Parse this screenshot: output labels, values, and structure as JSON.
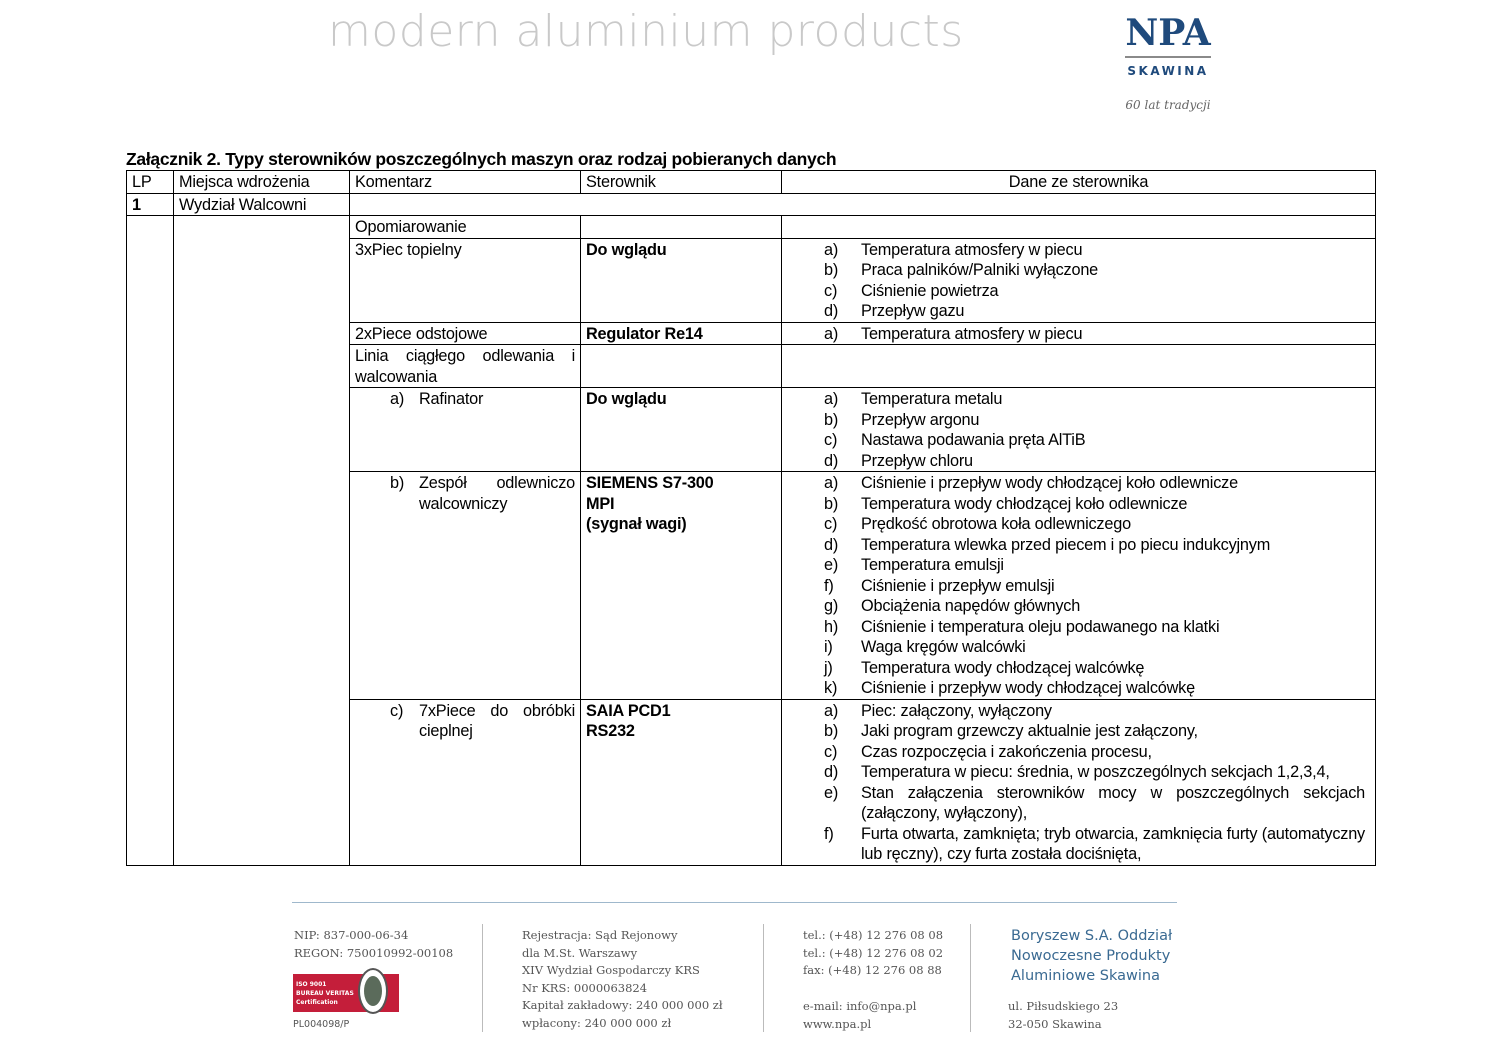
{
  "header": {
    "tagline": "modern aluminium products",
    "logo_main": "NPA",
    "logo_sub": "SKAWINA",
    "logo_tagline": "60 lat tradycji",
    "brand_color": "#1f4a7c"
  },
  "title": "Załącznik 2. Typy sterowników poszczególnych maszyn oraz rodzaj pobieranych danych",
  "table": {
    "headers": [
      "LP",
      "Miejsca wdrożenia",
      "Komentarz",
      "Sterownik",
      "Dane ze sterownika"
    ],
    "lp": "1",
    "place": "Wydział Walcowni",
    "rows": [
      {
        "comment": "Opomiarowanie",
        "controller": [],
        "data": []
      },
      {
        "comment": "3xPiec topielny",
        "controller": [
          "Do wglądu"
        ],
        "data": [
          [
            "a)",
            "Temperatura atmosfery w piecu"
          ],
          [
            "b)",
            "Praca palników/Palniki wyłączone"
          ],
          [
            "c)",
            "Ciśnienie powietrza"
          ],
          [
            "d)",
            "Przepływ gazu"
          ]
        ]
      },
      {
        "comment": "2xPiece odstojowe",
        "controller": [
          "Regulator Re14"
        ],
        "data": [
          [
            "a)",
            "Temperatura atmosfery w piecu"
          ]
        ]
      },
      {
        "comment": "Linia ciągłego odlewania i walcowania",
        "controller": [],
        "data": []
      },
      {
        "sub_letter": "a)",
        "comment": "Rafinator",
        "controller": [
          "Do wglądu"
        ],
        "data": [
          [
            "a)",
            "Temperatura metalu"
          ],
          [
            "b)",
            "Przepływ argonu"
          ],
          [
            "c)",
            "Nastawa podawania pręta AlTiB"
          ],
          [
            "d)",
            "Przepływ chloru"
          ]
        ]
      },
      {
        "sub_letter": "b)",
        "comment": "Zespół odlewniczo walcowniczy",
        "controller": [
          "SIEMENS S7-300",
          "MPI",
          "(sygnał wagi)"
        ],
        "data": [
          [
            "a)",
            "Ciśnienie i przepływ wody chłodzącej koło odlewnicze"
          ],
          [
            "b)",
            "Temperatura wody chłodzącej koło odlewnicze"
          ],
          [
            "c)",
            "Prędkość obrotowa koła odlewniczego"
          ],
          [
            "d)",
            "Temperatura wlewka przed piecem i po piecu indukcyjnym"
          ],
          [
            "e)",
            "Temperatura emulsji"
          ],
          [
            "f)",
            "Ciśnienie i przepływ emulsji"
          ],
          [
            "g)",
            "Obciążenia napędów głównych"
          ],
          [
            "h)",
            "Ciśnienie i temperatura oleju podawanego na klatki"
          ],
          [
            "i)",
            "Waga kręgów walcówki"
          ],
          [
            "j)",
            "Temperatura wody chłodzącej walcówkę"
          ],
          [
            "k)",
            "Ciśnienie i przepływ wody chłodzącej walcówkę"
          ]
        ]
      },
      {
        "sub_letter": "c)",
        "comment": "7xPiece do obróbki cieplnej",
        "controller": [
          "SAIA PCD1",
          "RS232"
        ],
        "data": [
          [
            "a)",
            "Piec: załączony, wyłączony"
          ],
          [
            "b)",
            "Jaki program grzewczy aktualnie jest załączony,"
          ],
          [
            "c)",
            "Czas rozpoczęcia i zakończenia procesu,"
          ],
          [
            "d)",
            "Temperatura w piecu: średnia, w poszczególnych sekcjach 1,2,3,4,"
          ],
          [
            "e)",
            "Stan załączenia sterowników mocy w poszczególnych sekcjach (załączony, wyłączony),"
          ],
          [
            "f)",
            "Furta otwarta, zamknięta; tryb otwarcia, zamknięcia furty (automatyczny lub ręczny), czy furta została dociśnięta,"
          ]
        ]
      }
    ]
  },
  "footer": {
    "col1": [
      "NIP: 837-000-06-34",
      "REGON: 750010992-00108"
    ],
    "iso": [
      "ISO 9001",
      "BUREAU VERITAS",
      "Certification"
    ],
    "cert": "PL004098/P",
    "col2": [
      "Rejestracja: Sąd Rejonowy",
      "dla M.St. Warszawy",
      "XIV Wydział  Gospodarczy KRS",
      "Nr KRS: 0000063824",
      "Kapitał zakładowy: 240 000 000 zł",
      "wpłacony: 240 000 000 zł"
    ],
    "col3": [
      "tel.: (+48) 12 276 08 08",
      "tel.: (+48) 12 276 08 02",
      "fax: (+48) 12 276 08 88"
    ],
    "col3b": [
      "e-mail: info@npa.pl",
      "www.npa.pl"
    ],
    "company": [
      "Boryszew S.A. Oddział",
      "Nowoczesne Produkty",
      "Aluminiowe Skawina"
    ],
    "address": [
      "ul. Piłsudskiego 23",
      "32-050 Skawina"
    ]
  }
}
